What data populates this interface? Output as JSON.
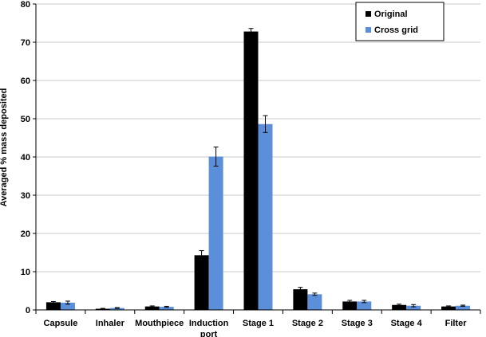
{
  "chart_data": {
    "type": "bar",
    "title": "",
    "xlabel": "",
    "ylabel": "Averaged % mass deposited",
    "ylim": [
      0,
      80
    ],
    "yticks": [
      0,
      10,
      20,
      30,
      40,
      50,
      60,
      70,
      80
    ],
    "grid": true,
    "legend_position": "top-right",
    "categories": [
      [
        "Capsule"
      ],
      [
        "Inhaler"
      ],
      [
        "Mouthpiece"
      ],
      [
        "Induction",
        "port"
      ],
      [
        "Stage 1"
      ],
      [
        "Stage 2"
      ],
      [
        "Stage 3"
      ],
      [
        "Stage 4"
      ],
      [
        "Filter"
      ]
    ],
    "series": [
      {
        "name": "Original",
        "color": "#000000",
        "values": [
          2.0,
          0.3,
          0.9,
          14.3,
          72.8,
          5.4,
          2.2,
          1.3,
          0.9
        ],
        "errors": [
          0.2,
          0.1,
          0.15,
          1.2,
          0.8,
          0.5,
          0.3,
          0.2,
          0.15
        ]
      },
      {
        "name": "Cross grid",
        "color": "#5B8FD9",
        "values": [
          1.9,
          0.5,
          0.8,
          40.1,
          48.6,
          4.1,
          2.2,
          1.1,
          1.1
        ],
        "errors": [
          0.4,
          0.1,
          0.15,
          2.5,
          2.2,
          0.3,
          0.3,
          0.3,
          0.15
        ]
      }
    ]
  }
}
